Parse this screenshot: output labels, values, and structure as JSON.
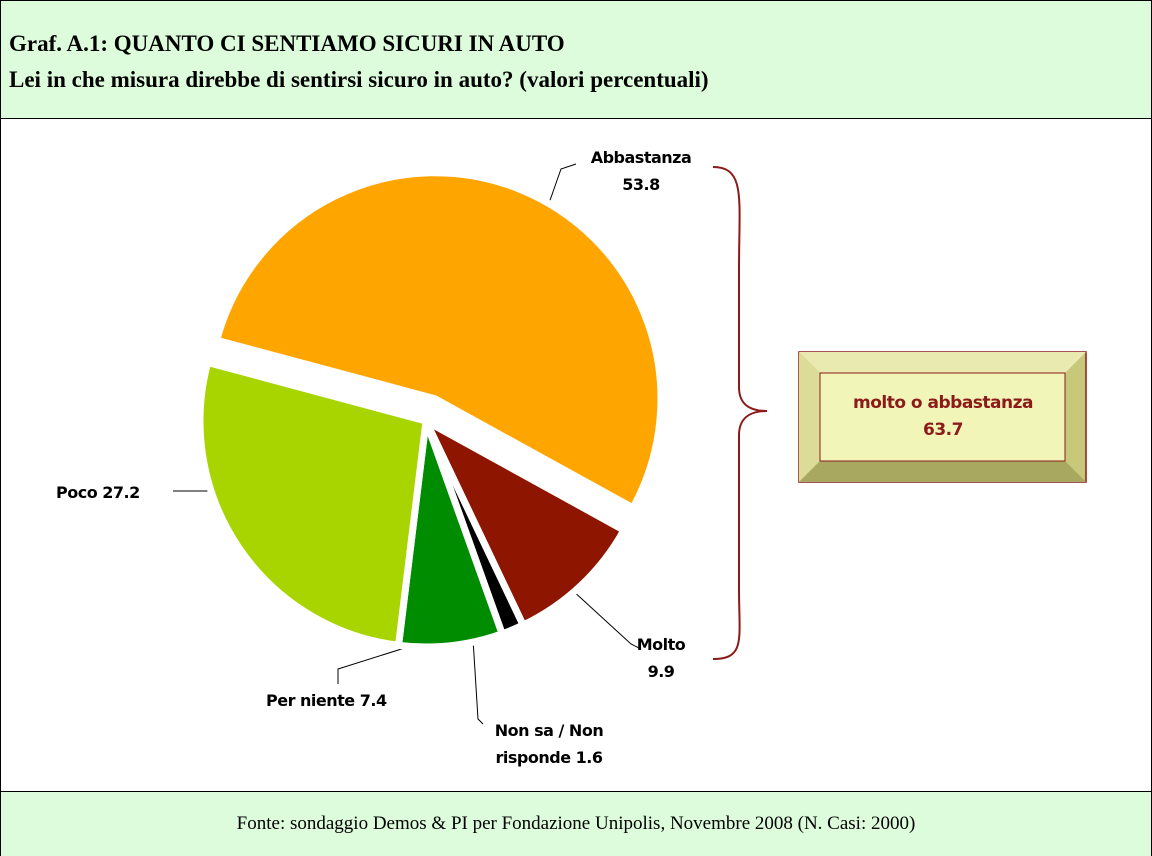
{
  "chart_data": {
    "type": "pie",
    "title": "Graf. A.1: QUANTO CI SENTIAMO SICURI IN AUTO",
    "subtitle": "Lei in che misura direbbe di sentirsi sicuro in auto? (valori percentuali)",
    "categories": [
      "Abbastanza",
      "Molto",
      "Non sa / Non risponde",
      "Per niente",
      "Poco"
    ],
    "values": [
      53.8,
      9.9,
      1.6,
      7.4,
      27.2
    ],
    "colors": [
      "#ffa500",
      "#8e1600",
      "#000000",
      "#008c00",
      "#a8d400"
    ],
    "annotation": {
      "text": "molto o abbastanza",
      "value": 63.7
    },
    "source": "Fonte: sondaggio Demos & PI per Fondazione Unipolis, Novembre 2008 (N. Casi: 2000)"
  }
}
